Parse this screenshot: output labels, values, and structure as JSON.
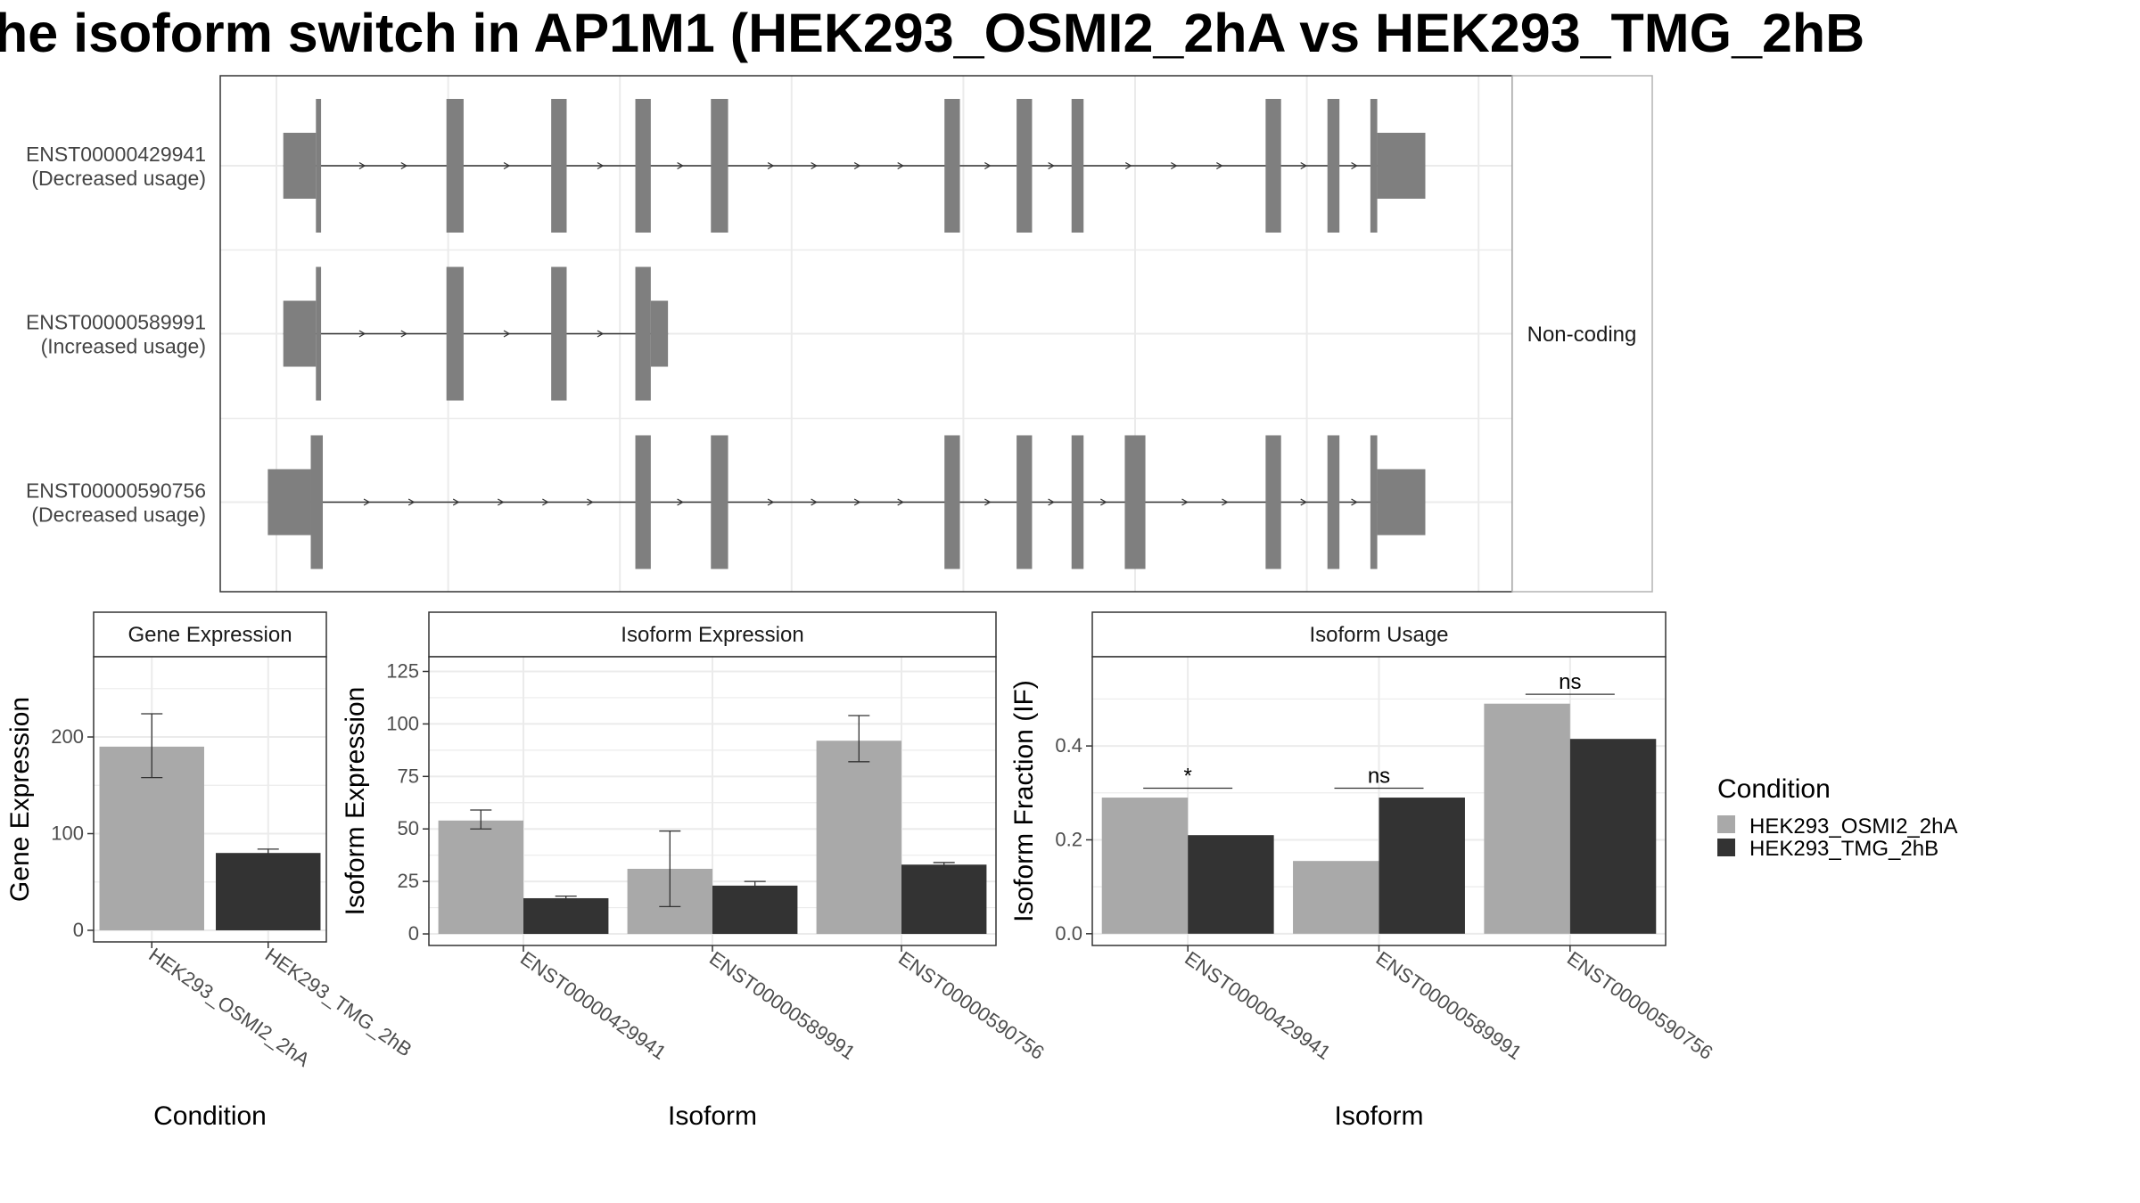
{
  "title": "he isoform switch in AP1M1 (HEK293_OSMI2_2hA vs HEK293_TMG_2hB",
  "colors": {
    "condA": "#a9a9a9",
    "condB": "#333333",
    "exon": "#7f7f7f",
    "grid": "#ebebeb"
  },
  "chart_data": [
    {
      "type": "diagram",
      "facet_label": "Non-coding",
      "transcripts": [
        {
          "id": "ENST00000429941",
          "usage": "(Decreased usage)",
          "exons": [
            [
              0.23,
              0.26
            ],
            [
              0.99,
              1.09
            ],
            [
              1.6,
              1.69
            ],
            [
              2.09,
              2.18
            ],
            [
              2.53,
              2.63
            ],
            [
              3.89,
              3.98
            ],
            [
              4.31,
              4.4
            ],
            [
              4.63,
              4.7
            ],
            [
              5.76,
              5.85
            ],
            [
              6.12,
              6.19
            ],
            [
              6.37,
              6.41
            ]
          ],
          "utr": [
            [
              0.04,
              0.23
            ],
            [
              6.41,
              6.69
            ]
          ],
          "span": [
            0.04,
            6.69
          ]
        },
        {
          "id": "ENST00000589991",
          "usage": "(Increased usage)",
          "exons": [
            [
              0.23,
              0.26
            ],
            [
              0.99,
              1.09
            ],
            [
              1.6,
              1.69
            ],
            [
              2.09,
              2.18
            ]
          ],
          "utr": [
            [
              0.04,
              0.23
            ],
            [
              2.18,
              2.28
            ]
          ],
          "span": [
            0.04,
            2.28
          ]
        },
        {
          "id": "ENST00000590756",
          "usage": "(Decreased usage)",
          "exons": [
            [
              0.2,
              0.27
            ],
            [
              2.09,
              2.18
            ],
            [
              2.53,
              2.63
            ],
            [
              3.89,
              3.98
            ],
            [
              4.31,
              4.4
            ],
            [
              4.63,
              4.7
            ],
            [
              4.94,
              5.06
            ],
            [
              5.76,
              5.85
            ],
            [
              6.12,
              6.19
            ],
            [
              6.37,
              6.41
            ]
          ],
          "utr": [
            [
              -0.05,
              0.2
            ],
            [
              6.41,
              6.69
            ]
          ],
          "span": [
            -0.05,
            6.69
          ]
        }
      ]
    },
    {
      "type": "bar",
      "strip": "Gene Expression",
      "categories": [
        "HEK293_OSMI2_2hA",
        "HEK293_TMG_2hB"
      ],
      "values": [
        190,
        80
      ],
      "err_low": [
        158,
        77
      ],
      "err_high": [
        224,
        84
      ],
      "ylim": [
        -12,
        283
      ],
      "yticks": [
        0,
        100,
        200
      ],
      "xlabel": "Condition",
      "ylabel": "Gene Expression"
    },
    {
      "type": "bar",
      "strip": "Isoform Expression",
      "categories": [
        "ENST00000429941",
        "ENST00000589991",
        "ENST00000590756"
      ],
      "series": [
        {
          "name": "HEK293_OSMI2_2hA",
          "values": [
            54,
            31,
            92
          ],
          "err_low": [
            50,
            13,
            82
          ],
          "err_high": [
            59,
            49,
            104
          ]
        },
        {
          "name": "HEK293_TMG_2hB",
          "values": [
            17,
            23,
            33
          ],
          "err_low": [
            16,
            22,
            32
          ],
          "err_high": [
            18,
            25,
            34
          ]
        }
      ],
      "ylim": [
        -5.5,
        132
      ],
      "yticks": [
        0,
        25,
        50,
        75,
        100,
        125
      ],
      "xlabel": "Isoform",
      "ylabel": "Isoform Expression"
    },
    {
      "type": "bar",
      "strip": "Isoform Usage",
      "categories": [
        "ENST00000429941",
        "ENST00000589991",
        "ENST00000590756"
      ],
      "series": [
        {
          "name": "HEK293_OSMI2_2hA",
          "values": [
            0.29,
            0.155,
            0.49
          ]
        },
        {
          "name": "HEK293_TMG_2hB",
          "values": [
            0.21,
            0.29,
            0.415
          ]
        }
      ],
      "significance": [
        "*",
        "ns",
        "ns"
      ],
      "ylim": [
        -0.025,
        0.59
      ],
      "yticks": [
        0.0,
        0.2,
        0.4
      ],
      "ytick_labels": [
        "0.0",
        "0.2",
        "0.4"
      ],
      "xlabel": "Isoform",
      "ylabel": "Isoform Fraction (IF)"
    }
  ],
  "legend": {
    "title": "Condition",
    "items": [
      {
        "label": "HEK293_OSMI2_2hA",
        "color": "#a9a9a9"
      },
      {
        "label": "HEK293_TMG_2hB",
        "color": "#333333"
      }
    ]
  }
}
